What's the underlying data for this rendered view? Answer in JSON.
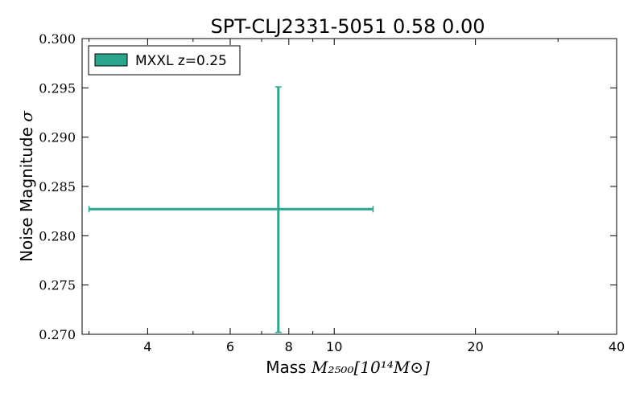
{
  "chart_data": {
    "type": "scatter",
    "title": "SPT-CLJ2331-5051 0.58 0.00",
    "xlabel_text": "Mass ",
    "xlabel_math": "M₂₅₀₀[10¹⁴M⊙]",
    "ylabel_text": "Noise Magnitude ",
    "ylabel_math": "σ",
    "xscale": "log",
    "xlim": [
      2.9,
      40
    ],
    "ylim": [
      0.27,
      0.3
    ],
    "xticks": [
      4,
      6,
      8,
      10,
      20,
      40
    ],
    "xtick_labels": [
      "4",
      "6",
      "8",
      "10",
      "20",
      "40"
    ],
    "yticks": [
      0.27,
      0.275,
      0.28,
      0.285,
      0.29,
      0.295,
      0.3
    ],
    "ytick_labels": [
      "0.270",
      "0.275",
      "0.280",
      "0.285",
      "0.290",
      "0.295",
      "0.300"
    ],
    "legend_position": "top-left",
    "grid": false,
    "series": [
      {
        "name": "MXXL z=0.25",
        "color": "#2ca58d",
        "x": 7.6,
        "y": 0.2827,
        "xerr": [
          3.0,
          12.1
        ],
        "yerr": [
          0.2702,
          0.2951
        ]
      }
    ]
  }
}
